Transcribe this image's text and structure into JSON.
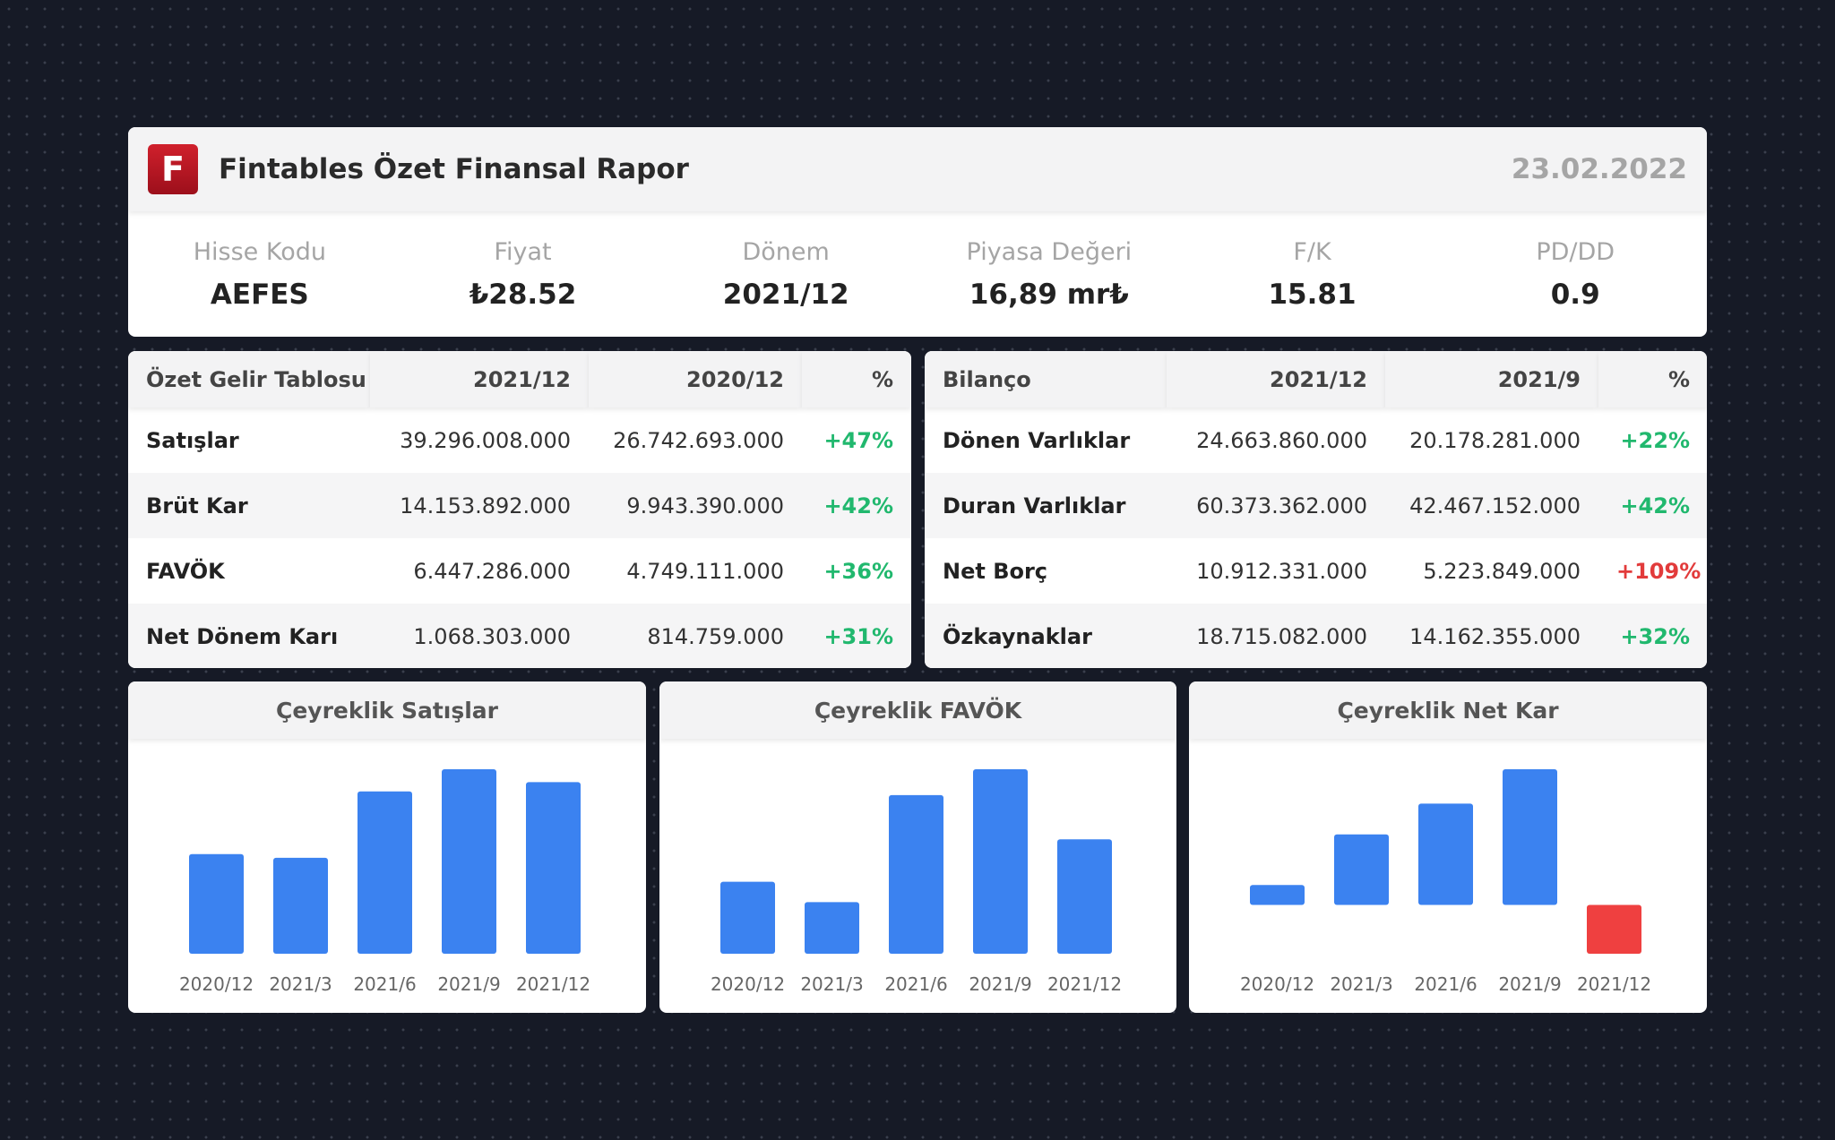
{
  "header": {
    "logo_letter": "F",
    "title": "Fintables Özet Finansal Rapor",
    "date": "23.02.2022"
  },
  "metrics": [
    {
      "label": "Hisse Kodu",
      "value": "AEFES"
    },
    {
      "label": "Fiyat",
      "value": "₺28.52"
    },
    {
      "label": "Dönem",
      "value": "2021/12"
    },
    {
      "label": "Piyasa Değeri",
      "value": "16,89 mr₺"
    },
    {
      "label": "F/K",
      "value": "15.81"
    },
    {
      "label": "PD/DD",
      "value": "0.9"
    }
  ],
  "income": {
    "headers": [
      "Özet Gelir Tablosu",
      "2021/12",
      "2020/12",
      "%"
    ],
    "rows": [
      {
        "name": "Satışlar",
        "a": "39.296.008.000",
        "b": "26.742.693.000",
        "pct": "+47%"
      },
      {
        "name": "Brüt Kar",
        "a": "14.153.892.000",
        "b": "9.943.390.000",
        "pct": "+42%"
      },
      {
        "name": "FAVÖK",
        "a": "6.447.286.000",
        "b": "4.749.111.000",
        "pct": "+36%"
      },
      {
        "name": "Net Dönem Karı",
        "a": "1.068.303.000",
        "b": "814.759.000",
        "pct": "+31%"
      }
    ]
  },
  "balance": {
    "headers": [
      "Bilanço",
      "2021/12",
      "2021/9",
      "%"
    ],
    "rows": [
      {
        "name": "Dönen Varlıklar",
        "a": "24.663.860.000",
        "b": "20.178.281.000",
        "pct": "+22%"
      },
      {
        "name": "Duran Varlıklar",
        "a": "60.373.362.000",
        "b": "42.467.152.000",
        "pct": "+42%"
      },
      {
        "name": "Net Borç",
        "a": "10.912.331.000",
        "b": "5.223.849.000",
        "pct": "+109%"
      },
      {
        "name": "Özkaynaklar",
        "a": "18.715.082.000",
        "b": "14.162.355.000",
        "pct": "+32%"
      }
    ]
  },
  "colors": {
    "bar": "#3b82f0",
    "bar_negative": "#ef4040",
    "positive": "#21b86e",
    "negative": "#e23b3b"
  },
  "chart_data": [
    {
      "type": "bar",
      "title": "Çeyreklik Satışlar",
      "categories": [
        "2020/12",
        "2021/3",
        "2021/6",
        "2021/9",
        "2021/12"
      ],
      "values": [
        54,
        52,
        88,
        100,
        93
      ],
      "ylim": [
        0,
        100
      ]
    },
    {
      "type": "bar",
      "title": "Çeyreklik FAVÖK",
      "categories": [
        "2020/12",
        "2021/3",
        "2021/6",
        "2021/9",
        "2021/12"
      ],
      "values": [
        39,
        28,
        86,
        100,
        62
      ],
      "ylim": [
        0,
        100
      ]
    },
    {
      "type": "bar",
      "title": "Çeyreklik Net Kar",
      "categories": [
        "2020/12",
        "2021/3",
        "2021/6",
        "2021/9",
        "2021/12"
      ],
      "values": [
        11,
        39,
        56,
        75,
        -27
      ],
      "ylim": [
        -27,
        75
      ]
    }
  ]
}
